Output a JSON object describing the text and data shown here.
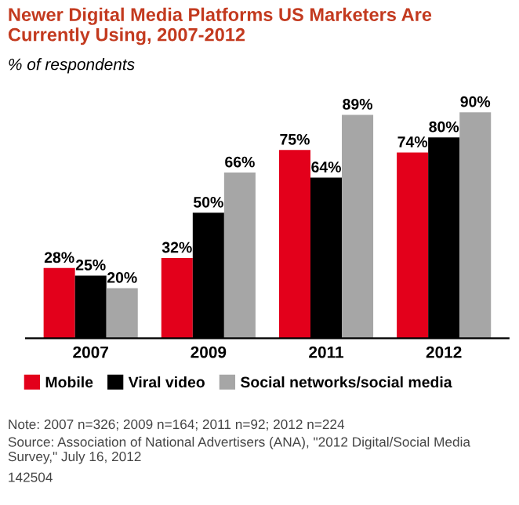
{
  "chart_data": {
    "type": "bar",
    "title": "Newer Digital Media Platforms US Marketers Are Currently Using, 2007-2012",
    "subtitle": "% of respondents",
    "categories": [
      "2007",
      "2009",
      "2011",
      "2012"
    ],
    "series": [
      {
        "name": "Mobile",
        "color": "#e3001b",
        "values": [
          28,
          32,
          75,
          74
        ],
        "value_labels": [
          "28%",
          "32%",
          "75%",
          "74%"
        ]
      },
      {
        "name": "Viral video",
        "color": "#000000",
        "values": [
          25,
          50,
          64,
          80
        ],
        "value_labels": [
          "25%",
          "50%",
          "64%",
          "80%"
        ]
      },
      {
        "name": "Social networks/social media",
        "color": "#a6a6a6",
        "values": [
          20,
          66,
          89,
          90
        ],
        "value_labels": [
          "20%",
          "66%",
          "89%",
          "90%"
        ]
      }
    ],
    "legend": "bottom",
    "annotations": [
      "Note: 2007 n=326; 2009 n=164; 2011 n=92; 2012 n=224",
      "Source: Association of National Advertisers (ANA), \"2012 Digital/Social Media Survey,\" July 16, 2012",
      "142504"
    ]
  }
}
